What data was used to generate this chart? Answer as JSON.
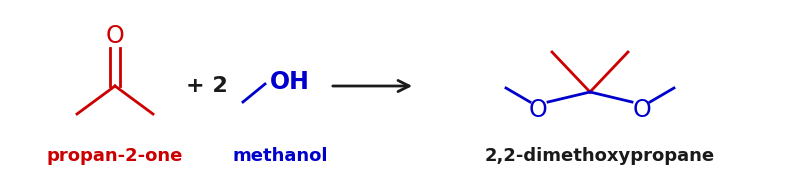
{
  "bg_color": "#ffffff",
  "red": "#cc0000",
  "blue": "#0000cc",
  "black": "#1a1a1a",
  "label_propanone": "propan-2-one",
  "label_methanol": "methanol",
  "label_product": "2,2-dimethoxypropane",
  "figsize": [
    8.0,
    1.74
  ],
  "dpi": 100
}
